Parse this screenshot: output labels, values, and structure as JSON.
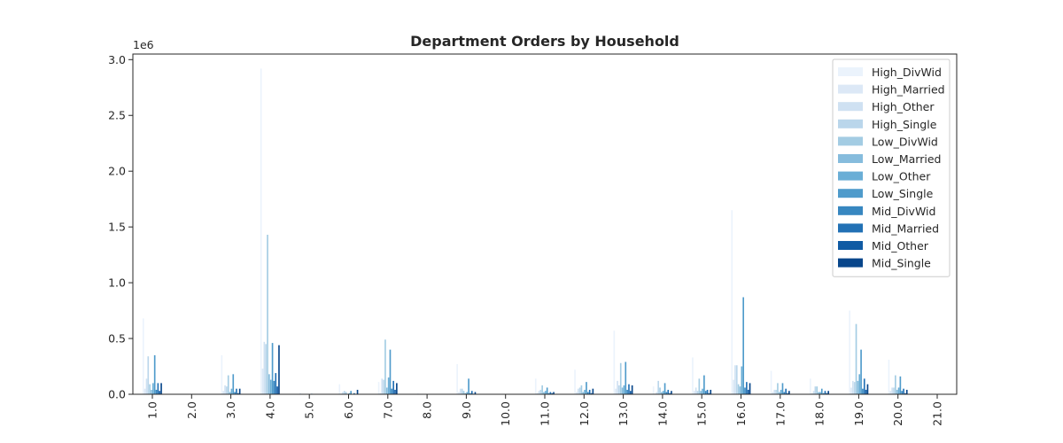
{
  "chart_data": {
    "type": "bar",
    "title": "Department Orders by Household",
    "xlabel": "",
    "ylabel": "",
    "y_offset_label": "1e6",
    "ylim": [
      0,
      3.05
    ],
    "yticks": [
      "0.0",
      "0.5",
      "1.0",
      "1.5",
      "2.0",
      "2.5",
      "3.0"
    ],
    "ytick_values": [
      0,
      0.5,
      1.0,
      1.5,
      2.0,
      2.5,
      3.0
    ],
    "categories": [
      "1.0",
      "2.0",
      "3.0",
      "4.0",
      "5.0",
      "6.0",
      "7.0",
      "8.0",
      "9.0",
      "10.0",
      "11.0",
      "12.0",
      "13.0",
      "14.0",
      "15.0",
      "16.0",
      "17.0",
      "18.0",
      "19.0",
      "20.0",
      "21.0"
    ],
    "legend_position": "top-right",
    "grid": false,
    "series": [
      {
        "name": "High_DivWid",
        "color": "#ebf3fc",
        "values": [
          0.68,
          0.004,
          0.35,
          2.92,
          0.015,
          0.09,
          0.11,
          0.008,
          0.27,
          0.003,
          0.14,
          0.22,
          0.57,
          0.07,
          0.33,
          1.65,
          0.21,
          0.14,
          0.75,
          0.31,
          0.003
        ]
      },
      {
        "name": "High_Married",
        "color": "#dce8f6",
        "values": [
          0.05,
          0.001,
          0.03,
          0.23,
          0.001,
          0.006,
          0.01,
          0.001,
          0.02,
          0.0005,
          0.01,
          0.02,
          0.05,
          0.006,
          0.03,
          0.13,
          0.02,
          0.01,
          0.06,
          0.03,
          0.0005
        ]
      },
      {
        "name": "High_Other",
        "color": "#cfe1f2",
        "values": [
          0.14,
          0.002,
          0.08,
          0.47,
          0.004,
          0.02,
          0.14,
          0.002,
          0.05,
          0.001,
          0.03,
          0.05,
          0.12,
          0.02,
          0.06,
          0.26,
          0.04,
          0.03,
          0.12,
          0.06,
          0.001
        ]
      },
      {
        "name": "High_Single",
        "color": "#bad6eb",
        "values": [
          0.34,
          0.002,
          0.07,
          0.45,
          0.004,
          0.03,
          0.13,
          0.002,
          0.05,
          0.001,
          0.04,
          0.06,
          0.08,
          0.12,
          0.03,
          0.26,
          0.04,
          0.07,
          0.11,
          0.06,
          0.001
        ]
      },
      {
        "name": "Low_DivWid",
        "color": "#a3cce3",
        "values": [
          0.09,
          0.001,
          0.17,
          1.43,
          0.004,
          0.02,
          0.49,
          0.002,
          0.03,
          0.001,
          0.08,
          0.08,
          0.28,
          0.06,
          0.14,
          0.09,
          0.1,
          0.07,
          0.63,
          0.17,
          0.002
        ]
      },
      {
        "name": "Low_Married",
        "color": "#86bcdd",
        "values": [
          0.04,
          0.001,
          0.02,
          0.18,
          0.002,
          0.004,
          0.06,
          0.001,
          0.01,
          0.0005,
          0.02,
          0.02,
          0.06,
          0.02,
          0.03,
          0.07,
          0.02,
          0.02,
          0.12,
          0.04,
          0.0005
        ]
      },
      {
        "name": "Low_Other",
        "color": "#6aaed6",
        "values": [
          0.1,
          0.001,
          0.05,
          0.13,
          0.002,
          0.01,
          0.15,
          0.001,
          0.02,
          0.0005,
          0.03,
          0.04,
          0.08,
          0.03,
          0.05,
          0.25,
          0.04,
          0.02,
          0.18,
          0.06,
          0.001
        ]
      },
      {
        "name": "Low_Single",
        "color": "#4f9bcb",
        "values": [
          0.35,
          0.002,
          0.18,
          0.46,
          0.005,
          0.03,
          0.4,
          0.002,
          0.14,
          0.001,
          0.06,
          0.11,
          0.29,
          0.1,
          0.17,
          0.87,
          0.1,
          0.05,
          0.4,
          0.16,
          0.002
        ]
      },
      {
        "name": "Mid_DivWid",
        "color": "#3787c0",
        "values": [
          0.04,
          0.001,
          0.02,
          0.12,
          0.002,
          0.004,
          0.05,
          0.001,
          0.01,
          0.0005,
          0.01,
          0.02,
          0.04,
          0.02,
          0.03,
          0.06,
          0.02,
          0.01,
          0.05,
          0.03,
          0.0005
        ]
      },
      {
        "name": "Mid_Married",
        "color": "#2271b5",
        "values": [
          0.1,
          0.002,
          0.05,
          0.19,
          0.003,
          0.01,
          0.12,
          0.002,
          0.03,
          0.001,
          0.02,
          0.04,
          0.09,
          0.04,
          0.04,
          0.11,
          0.05,
          0.03,
          0.14,
          0.05,
          0.001
        ]
      },
      {
        "name": "Mid_Other",
        "color": "#105ba4",
        "values": [
          0.03,
          0.001,
          0.01,
          0.07,
          0.001,
          0.003,
          0.04,
          0.001,
          0.005,
          0.0005,
          0.01,
          0.01,
          0.03,
          0.01,
          0.01,
          0.04,
          0.01,
          0.01,
          0.04,
          0.01,
          0.0005
        ]
      },
      {
        "name": "Mid_Single",
        "color": "#08468b",
        "values": [
          0.1,
          0.002,
          0.05,
          0.44,
          0.003,
          0.04,
          0.1,
          0.002,
          0.02,
          0.001,
          0.02,
          0.05,
          0.08,
          0.03,
          0.04,
          0.1,
          0.03,
          0.03,
          0.09,
          0.04,
          0.001
        ]
      }
    ]
  }
}
